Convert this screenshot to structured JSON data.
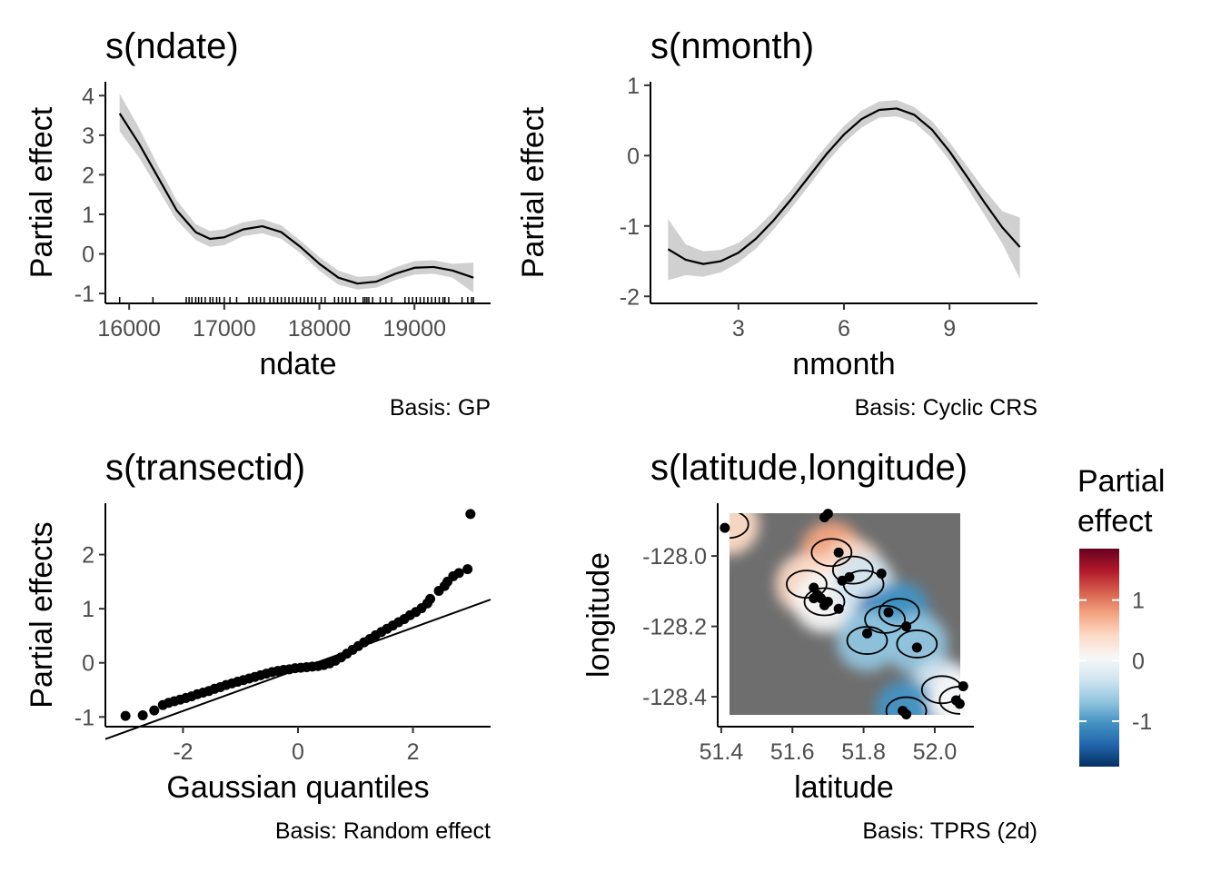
{
  "chart_data": [
    {
      "type": "line",
      "title": "s(ndate)",
      "xlabel": "ndate",
      "ylabel": "Partial effect",
      "caption": "Basis: GP",
      "xlim": [
        15750,
        19800
      ],
      "ylim": [
        -1.25,
        4.35
      ],
      "xticks": [
        16000,
        17000,
        18000,
        19000
      ],
      "yticks": [
        -1,
        0,
        1,
        2,
        3,
        4
      ],
      "series": [
        {
          "x": [
            15900,
            16100,
            16300,
            16500,
            16700,
            16850,
            17000,
            17200,
            17400,
            17600,
            17800,
            18000,
            18200,
            18400,
            18600,
            18800,
            19000,
            19200,
            19400,
            19620
          ],
          "y": [
            3.55,
            2.8,
            1.95,
            1.1,
            0.55,
            0.38,
            0.42,
            0.62,
            0.7,
            0.55,
            0.18,
            -0.25,
            -0.6,
            -0.75,
            -0.7,
            -0.5,
            -0.35,
            -0.33,
            -0.42,
            -0.6
          ],
          "lower": [
            3.1,
            2.45,
            1.65,
            0.85,
            0.35,
            0.18,
            0.22,
            0.45,
            0.52,
            0.38,
            0.02,
            -0.42,
            -0.78,
            -0.9,
            -0.85,
            -0.66,
            -0.52,
            -0.5,
            -0.6,
            -0.98
          ],
          "upper": [
            4.05,
            3.2,
            2.25,
            1.35,
            0.75,
            0.58,
            0.62,
            0.8,
            0.88,
            0.72,
            0.34,
            -0.08,
            -0.42,
            -0.58,
            -0.55,
            -0.34,
            -0.18,
            -0.16,
            -0.25,
            -0.22
          ]
        }
      ],
      "rug": [
        15900,
        16250,
        16600,
        16630,
        16660,
        16700,
        16730,
        16760,
        16800,
        16850,
        16880,
        16920,
        16950,
        17000,
        17060,
        17130,
        17260,
        17300,
        17340,
        17380,
        17420,
        17480,
        17520,
        17560,
        17600,
        17640,
        17680,
        17720,
        17760,
        17800,
        17840,
        17880,
        17920,
        17960,
        18020,
        18060,
        18160,
        18200,
        18240,
        18280,
        18320,
        18380,
        18460,
        18480,
        18500,
        18520,
        18560,
        18640,
        18700,
        18760,
        18900,
        18940,
        18980,
        19020,
        19060,
        19100,
        19140,
        19180,
        19220,
        19260,
        19300,
        19320,
        19360,
        19500,
        19560,
        19600,
        19620
      ]
    },
    {
      "type": "line",
      "title": "s(nmonth)",
      "xlabel": "nmonth",
      "ylabel": "Partial effect",
      "caption": "Basis: Cyclic CRS",
      "xlim": [
        0.5,
        11.5
      ],
      "ylim": [
        -2.1,
        1.05
      ],
      "xticks": [
        3,
        6,
        9
      ],
      "yticks": [
        -2,
        -1,
        0,
        1
      ],
      "series": [
        {
          "x": [
            1,
            1.5,
            2,
            2.5,
            3,
            3.5,
            4,
            4.5,
            5,
            5.5,
            6,
            6.5,
            7,
            7.5,
            8,
            8.5,
            9,
            9.5,
            10,
            10.5,
            11
          ],
          "y": [
            -1.33,
            -1.48,
            -1.54,
            -1.5,
            -1.38,
            -1.18,
            -0.92,
            -0.62,
            -0.3,
            0.02,
            0.3,
            0.52,
            0.65,
            0.67,
            0.58,
            0.37,
            0.06,
            -0.3,
            -0.67,
            -1.02,
            -1.3
          ],
          "lower": [
            -1.77,
            -1.7,
            -1.72,
            -1.66,
            -1.52,
            -1.32,
            -1.05,
            -0.75,
            -0.43,
            -0.1,
            0.18,
            0.4,
            0.54,
            0.56,
            0.47,
            0.25,
            -0.07,
            -0.45,
            -0.85,
            -1.25,
            -1.75
          ],
          "upper": [
            -0.9,
            -1.26,
            -1.36,
            -1.34,
            -1.24,
            -1.04,
            -0.79,
            -0.49,
            -0.17,
            0.14,
            0.42,
            0.64,
            0.77,
            0.79,
            0.69,
            0.49,
            0.19,
            -0.15,
            -0.49,
            -0.79,
            -0.88
          ]
        }
      ]
    },
    {
      "type": "scatter",
      "title": "s(transectid)",
      "xlabel": "Gaussian quantiles",
      "ylabel": "Partial effects",
      "caption": "Basis: Random effect",
      "xlim": [
        -3.35,
        3.35
      ],
      "ylim": [
        -1.18,
        2.95
      ],
      "xticks": [
        -2,
        0,
        2
      ],
      "yticks": [
        -1,
        0,
        1,
        2
      ],
      "reference_line": {
        "slope": 0.385,
        "intercept": -0.12
      },
      "points": [
        [
          -3.0,
          -0.98
        ],
        [
          -2.7,
          -0.97
        ],
        [
          -2.5,
          -0.88
        ],
        [
          -2.35,
          -0.78
        ],
        [
          -2.25,
          -0.74
        ],
        [
          -2.15,
          -0.71
        ],
        [
          -2.05,
          -0.68
        ],
        [
          -1.95,
          -0.65
        ],
        [
          -1.85,
          -0.62
        ],
        [
          -1.75,
          -0.58
        ],
        [
          -1.65,
          -0.55
        ],
        [
          -1.55,
          -0.52
        ],
        [
          -1.45,
          -0.48
        ],
        [
          -1.35,
          -0.45
        ],
        [
          -1.25,
          -0.41
        ],
        [
          -1.15,
          -0.38
        ],
        [
          -1.05,
          -0.35
        ],
        [
          -0.95,
          -0.32
        ],
        [
          -0.85,
          -0.29
        ],
        [
          -0.75,
          -0.26
        ],
        [
          -0.65,
          -0.23
        ],
        [
          -0.55,
          -0.2
        ],
        [
          -0.45,
          -0.17
        ],
        [
          -0.35,
          -0.15
        ],
        [
          -0.25,
          -0.13
        ],
        [
          -0.15,
          -0.12
        ],
        [
          -0.05,
          -0.1
        ],
        [
          0.05,
          -0.09
        ],
        [
          0.15,
          -0.08
        ],
        [
          0.25,
          -0.07
        ],
        [
          0.35,
          -0.06
        ],
        [
          0.45,
          -0.04
        ],
        [
          0.55,
          -0.01
        ],
        [
          0.65,
          0.04
        ],
        [
          0.75,
          0.1
        ],
        [
          0.85,
          0.17
        ],
        [
          0.95,
          0.24
        ],
        [
          1.05,
          0.31
        ],
        [
          1.15,
          0.38
        ],
        [
          1.25,
          0.44
        ],
        [
          1.35,
          0.51
        ],
        [
          1.45,
          0.57
        ],
        [
          1.55,
          0.63
        ],
        [
          1.65,
          0.69
        ],
        [
          1.75,
          0.75
        ],
        [
          1.85,
          0.81
        ],
        [
          1.95,
          0.88
        ],
        [
          2.05,
          0.94
        ],
        [
          2.15,
          1.01
        ],
        [
          2.25,
          1.1
        ],
        [
          2.3,
          1.18
        ],
        [
          2.45,
          1.33
        ],
        [
          2.55,
          1.42
        ],
        [
          2.6,
          1.5
        ],
        [
          2.7,
          1.6
        ],
        [
          2.8,
          1.66
        ],
        [
          2.95,
          1.73
        ],
        [
          3.0,
          2.75
        ]
      ]
    },
    {
      "type": "heatmap",
      "title": "s(latitude,longitude)",
      "xlabel": "latitude",
      "ylabel": "longitude",
      "caption": "Basis: TPRS (2d)",
      "xlim": [
        51.39,
        52.11
      ],
      "ylim": [
        -128.485,
        -127.85
      ],
      "xticks": [
        51.4,
        51.6,
        51.8,
        52.0
      ],
      "yticks": [
        -128.0,
        -128.2,
        -128.4
      ],
      "xtick_labels": [
        "51.4",
        "51.6",
        "51.8",
        "52.0"
      ],
      "ytick_labels": [
        "-128.0",
        "-128.2",
        "-128.4"
      ],
      "background": "#6e6e6e",
      "field": [
        {
          "x": 51.42,
          "y": -127.91,
          "value": 0.25
        },
        {
          "x": 51.71,
          "y": -127.99,
          "value": 0.8
        },
        {
          "x": 51.77,
          "y": -128.04,
          "value": 0.5
        },
        {
          "x": 51.64,
          "y": -128.08,
          "value": 0.45
        },
        {
          "x": 51.69,
          "y": -128.13,
          "value": 0.15
        },
        {
          "x": 51.8,
          "y": -128.08,
          "value": -0.3
        },
        {
          "x": 51.86,
          "y": -128.18,
          "value": -1.3
        },
        {
          "x": 51.9,
          "y": -128.16,
          "value": -1.05
        },
        {
          "x": 51.81,
          "y": -128.24,
          "value": -0.8
        },
        {
          "x": 51.95,
          "y": -128.25,
          "value": -0.55
        },
        {
          "x": 52.02,
          "y": -128.38,
          "value": -0.2
        },
        {
          "x": 51.92,
          "y": -128.44,
          "value": -1.05
        },
        {
          "x": 52.07,
          "y": -128.41,
          "value": 0.1
        }
      ],
      "points": [
        [
          51.41,
          -127.92
        ],
        [
          51.7,
          -127.88
        ],
        [
          51.69,
          -127.89
        ],
        [
          51.73,
          -127.99
        ],
        [
          51.76,
          -128.06
        ],
        [
          51.74,
          -128.07
        ],
        [
          51.85,
          -128.05
        ],
        [
          51.66,
          -128.09
        ],
        [
          51.67,
          -128.11
        ],
        [
          51.66,
          -128.12
        ],
        [
          51.68,
          -128.12
        ],
        [
          51.7,
          -128.13
        ],
        [
          51.69,
          -128.14
        ],
        [
          51.73,
          -128.15
        ],
        [
          51.87,
          -128.16
        ],
        [
          51.92,
          -128.2
        ],
        [
          51.81,
          -128.22
        ],
        [
          51.95,
          -128.26
        ],
        [
          52.08,
          -128.37
        ],
        [
          52.06,
          -128.41
        ],
        [
          52.07,
          -128.42
        ],
        [
          51.91,
          -128.44
        ],
        [
          51.92,
          -128.45
        ]
      ],
      "legend": {
        "title": "Partial\neffect",
        "title_lines": [
          "Partial",
          "effect"
        ],
        "position": "right",
        "min": -1.75,
        "max": 1.85,
        "ticks": [
          1,
          0,
          -1
        ],
        "tick_labels": [
          "1",
          "0",
          "-1"
        ],
        "colors": [
          "#053061",
          "#2166ac",
          "#4393c3",
          "#92c5de",
          "#d1e5f0",
          "#f7f7f7",
          "#fddbc7",
          "#f4a582",
          "#d6604d",
          "#b2182b",
          "#67001f"
        ]
      }
    }
  ]
}
